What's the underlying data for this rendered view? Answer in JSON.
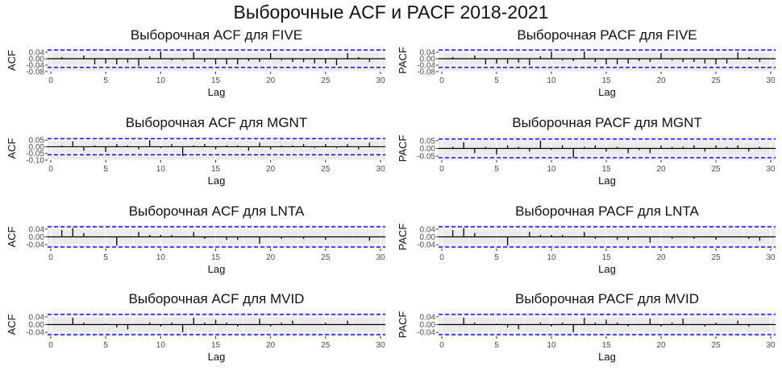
{
  "figure": {
    "title": "Выборочные ACF и PACF 2018-2021"
  },
  "chart_data": [
    {
      "type": "bar",
      "title": "Выборочная ACF для FIVE",
      "xlabel": "Lag",
      "ylabel": "ACF",
      "x": [
        1,
        2,
        3,
        4,
        5,
        6,
        7,
        8,
        9,
        10,
        11,
        12,
        13,
        14,
        15,
        16,
        17,
        18,
        19,
        20,
        21,
        22,
        23,
        24,
        25,
        26,
        27,
        28,
        29
      ],
      "values": [
        0.01,
        0.0,
        0.02,
        -0.035,
        -0.03,
        -0.035,
        -0.025,
        -0.045,
        0.015,
        0.045,
        -0.01,
        -0.01,
        0.04,
        -0.02,
        -0.035,
        -0.035,
        -0.035,
        -0.015,
        -0.02,
        0.035,
        -0.01,
        -0.02,
        -0.02,
        -0.03,
        -0.03,
        -0.04,
        0.035,
        0.01,
        -0.02
      ],
      "yticks": [
        "0.04",
        "0.00",
        "-0.04",
        "-0.08"
      ],
      "ytick_values": [
        0.04,
        0.0,
        -0.04,
        -0.08
      ],
      "ylim": [
        -0.08,
        0.06
      ],
      "conf_limit": 0.054,
      "xticks": [
        "0",
        "5",
        "10",
        "15",
        "20",
        "25",
        "30"
      ],
      "xlim": [
        0,
        30
      ]
    },
    {
      "type": "bar",
      "title": "Выборочная PACF для FIVE",
      "xlabel": "Lag",
      "ylabel": "PACF",
      "x": [
        1,
        2,
        3,
        4,
        5,
        6,
        7,
        8,
        9,
        10,
        11,
        12,
        13,
        14,
        15,
        16,
        17,
        18,
        19,
        20,
        21,
        22,
        23,
        24,
        25,
        26,
        27,
        28,
        29
      ],
      "values": [
        0.01,
        0.0,
        0.02,
        -0.035,
        -0.03,
        -0.03,
        -0.025,
        -0.04,
        0.015,
        0.045,
        -0.01,
        -0.015,
        0.045,
        -0.02,
        -0.035,
        -0.035,
        -0.03,
        -0.015,
        -0.02,
        0.035,
        -0.01,
        -0.02,
        -0.02,
        -0.03,
        -0.035,
        -0.03,
        0.04,
        0.01,
        -0.02
      ],
      "yticks": [
        "0.04",
        "0.00",
        "-0.04",
        "-0.08"
      ],
      "ytick_values": [
        0.04,
        0.0,
        -0.04,
        -0.08
      ],
      "ylim": [
        -0.08,
        0.06
      ],
      "conf_limit": 0.054,
      "xticks": [
        "0",
        "5",
        "10",
        "15",
        "20",
        "25",
        "30"
      ],
      "xlim": [
        0,
        30
      ]
    },
    {
      "type": "bar",
      "title": "Выборочная ACF для MGNT",
      "xlabel": "Lag",
      "ylabel": "ACF",
      "x": [
        1,
        2,
        3,
        4,
        5,
        6,
        7,
        8,
        9,
        10,
        11,
        12,
        13,
        14,
        15,
        16,
        17,
        18,
        19,
        20,
        21,
        22,
        23,
        24,
        25,
        26,
        27,
        28,
        29
      ],
      "values": [
        0.01,
        0.04,
        -0.03,
        0.01,
        -0.04,
        0.02,
        0.01,
        -0.02,
        0.05,
        -0.01,
        0.02,
        -0.07,
        0.01,
        0.02,
        -0.02,
        0.01,
        0.01,
        -0.03,
        0.03,
        -0.02,
        0.01,
        0.01,
        0.02,
        -0.01,
        0.02,
        -0.01,
        0.02,
        -0.02,
        0.03
      ],
      "yticks": [
        "0.05",
        "0.00",
        "-0.05",
        "-0.10"
      ],
      "ytick_values": [
        0.05,
        0.0,
        -0.05,
        -0.1
      ],
      "ylim": [
        -0.1,
        0.075
      ],
      "conf_limit": 0.06,
      "xticks": [
        "0",
        "5",
        "10",
        "15",
        "20",
        "25",
        "30"
      ],
      "xlim": [
        0,
        30
      ]
    },
    {
      "type": "bar",
      "title": "Выборочная PACF для MGNT",
      "xlabel": "Lag",
      "ylabel": "PACF",
      "x": [
        1,
        2,
        3,
        4,
        5,
        6,
        7,
        8,
        9,
        10,
        11,
        12,
        13,
        14,
        15,
        16,
        17,
        18,
        19,
        20,
        21,
        22,
        23,
        24,
        25,
        26,
        27,
        28,
        29
      ],
      "values": [
        0.01,
        0.04,
        -0.03,
        0.01,
        -0.04,
        0.02,
        0.01,
        -0.02,
        0.05,
        -0.01,
        0.02,
        -0.06,
        0.01,
        0.02,
        -0.02,
        0.01,
        -0.03,
        -0.01,
        -0.03,
        0.02,
        0.01,
        0.01,
        0.02,
        -0.02,
        0.02,
        0.01,
        0.02,
        -0.02,
        0.01
      ],
      "yticks": [
        "0.05",
        "0.00",
        "-0.05"
      ],
      "ytick_values": [
        0.05,
        0.0,
        -0.05
      ],
      "ylim": [
        -0.075,
        0.075
      ],
      "conf_limit": 0.06,
      "xticks": [
        "0",
        "5",
        "10",
        "15",
        "20",
        "25",
        "30"
      ],
      "xlim": [
        0,
        30
      ]
    },
    {
      "type": "bar",
      "title": "Выборочная ACF для LNTA",
      "xlabel": "Lag",
      "ylabel": "ACF",
      "x": [
        1,
        2,
        3,
        4,
        5,
        6,
        7,
        8,
        9,
        10,
        11,
        12,
        13,
        14,
        15,
        16,
        17,
        18,
        19,
        20,
        21,
        22,
        23,
        24,
        25,
        26,
        27,
        28,
        29
      ],
      "values": [
        0.035,
        0.045,
        0.02,
        0.0,
        0.0,
        -0.045,
        0.0,
        0.025,
        0.01,
        0.01,
        0.01,
        0.0,
        0.025,
        -0.01,
        0.0,
        -0.015,
        -0.015,
        0.0,
        -0.035,
        0.0,
        -0.01,
        0.0,
        -0.01,
        0.0,
        -0.015,
        0.0,
        0.0,
        0.0,
        -0.02
      ],
      "yticks": [
        "0.04",
        "0.00",
        "-0.04"
      ],
      "ytick_values": [
        0.04,
        0.0,
        -0.04
      ],
      "ylim": [
        -0.06,
        0.06
      ],
      "conf_limit": 0.052,
      "xticks": [
        "0",
        "5",
        "10",
        "15",
        "20",
        "25",
        "30"
      ],
      "xlim": [
        0,
        30
      ]
    },
    {
      "type": "bar",
      "title": "Выборочная PACF для LNTA",
      "xlabel": "Lag",
      "ylabel": "PACF",
      "x": [
        1,
        2,
        3,
        4,
        5,
        6,
        7,
        8,
        9,
        10,
        11,
        12,
        13,
        14,
        15,
        16,
        17,
        18,
        19,
        20,
        21,
        22,
        23,
        24,
        25,
        26,
        27,
        28,
        29
      ],
      "values": [
        0.035,
        0.045,
        0.02,
        0.0,
        0.0,
        -0.045,
        0.0,
        0.025,
        0.01,
        0.01,
        0.01,
        0.0,
        0.025,
        -0.01,
        0.0,
        -0.015,
        -0.015,
        0.0,
        -0.03,
        0.0,
        -0.01,
        0.0,
        -0.01,
        0.0,
        -0.015,
        0.0,
        0.0,
        -0.01,
        -0.02
      ],
      "yticks": [
        "0.04",
        "0.00",
        "-0.04"
      ],
      "ytick_values": [
        0.04,
        0.0,
        -0.04
      ],
      "ylim": [
        -0.06,
        0.06
      ],
      "conf_limit": 0.052,
      "xticks": [
        "0",
        "5",
        "10",
        "15",
        "20",
        "25",
        "30"
      ],
      "xlim": [
        0,
        30
      ]
    },
    {
      "type": "bar",
      "title": "Выборочная ACF для MVID",
      "xlabel": "Lag",
      "ylabel": "ACF",
      "x": [
        1,
        2,
        3,
        4,
        5,
        6,
        7,
        8,
        9,
        10,
        11,
        12,
        13,
        14,
        15,
        16,
        17,
        18,
        19,
        20,
        21,
        22,
        23,
        24,
        25,
        26,
        27,
        28,
        29
      ],
      "values": [
        0.0,
        0.035,
        0.01,
        0.0,
        0.005,
        -0.015,
        -0.025,
        0.0,
        0.01,
        -0.01,
        0.01,
        -0.04,
        0.035,
        0.01,
        0.025,
        0.01,
        -0.01,
        0.0,
        0.03,
        -0.01,
        0.01,
        0.02,
        0.0,
        0.0,
        0.01,
        0.0,
        0.02,
        0.0,
        0.0
      ],
      "yticks": [
        "0.04",
        "0.00",
        "-0.04"
      ],
      "ytick_values": [
        0.04,
        0.0,
        -0.04
      ],
      "ylim": [
        -0.06,
        0.06
      ],
      "conf_limit": 0.052,
      "xticks": [
        "0",
        "5",
        "10",
        "15",
        "20",
        "25",
        "30"
      ],
      "xlim": [
        0,
        30
      ]
    },
    {
      "type": "bar",
      "title": "Выборочная PACF для MVID",
      "xlabel": "Lag",
      "ylabel": "PACF",
      "x": [
        1,
        2,
        3,
        4,
        5,
        6,
        7,
        8,
        9,
        10,
        11,
        12,
        13,
        14,
        15,
        16,
        17,
        18,
        19,
        20,
        21,
        22,
        23,
        24,
        25,
        26,
        27,
        28,
        29
      ],
      "values": [
        0.0,
        0.035,
        0.01,
        0.0,
        0.005,
        -0.015,
        -0.025,
        0.0,
        0.01,
        -0.01,
        0.01,
        -0.04,
        0.035,
        0.01,
        0.025,
        0.01,
        -0.01,
        0.0,
        0.03,
        -0.01,
        0.01,
        0.03,
        0.0,
        -0.01,
        0.01,
        0.0,
        0.02,
        -0.01,
        0.0
      ],
      "yticks": [
        "0.04",
        "0.00",
        "-0.04"
      ],
      "ytick_values": [
        0.04,
        0.0,
        -0.04
      ],
      "ylim": [
        -0.06,
        0.06
      ],
      "conf_limit": 0.052,
      "xticks": [
        "0",
        "5",
        "10",
        "15",
        "20",
        "25",
        "30"
      ],
      "xlim": [
        0,
        30
      ]
    }
  ],
  "colors": {
    "panel_bg": "#ebebeb",
    "grid": "#ffffff",
    "bar": "#000000",
    "conf_line": "#0000ff"
  }
}
